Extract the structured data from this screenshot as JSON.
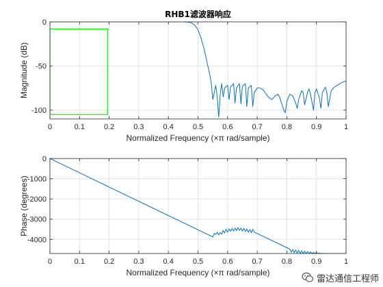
{
  "chart_data": [
    {
      "type": "line",
      "title": "RHB1滤波器响应",
      "xlabel": "Normalized Frequency  (×π rad/sample)",
      "ylabel": "Magnitude (dB)",
      "xlim": [
        0,
        1
      ],
      "ylim": [
        -110,
        0
      ],
      "xticks": [
        0,
        0.1,
        0.2,
        0.3,
        0.4,
        0.5,
        0.6,
        0.7,
        0.8,
        0.9,
        1
      ],
      "xtick_labels": [
        "0",
        "0.1",
        "0.2",
        "0.3",
        "0.4",
        "0.5",
        "0.6",
        "0.7",
        "0.8",
        "0.9",
        "1"
      ],
      "yticks": [
        0,
        -50,
        -100
      ],
      "ytick_labels": [
        "0",
        "-50",
        "-100"
      ],
      "grid": true,
      "series": [
        {
          "color": "#0072bd",
          "x": [
            0,
            0.45,
            0.47,
            0.48,
            0.49,
            0.5,
            0.51,
            0.52,
            0.53,
            0.54,
            0.545,
            0.55,
            0.555,
            0.56,
            0.565,
            0.57,
            0.575,
            0.58,
            0.585,
            0.59,
            0.6,
            0.605,
            0.61,
            0.62,
            0.625,
            0.63,
            0.64,
            0.645,
            0.65,
            0.66,
            0.665,
            0.67,
            0.68,
            0.685,
            0.69,
            0.7,
            0.71,
            0.72,
            0.73,
            0.74,
            0.75,
            0.76,
            0.77,
            0.775,
            0.78,
            0.79,
            0.795,
            0.8,
            0.81,
            0.82,
            0.83,
            0.835,
            0.84,
            0.85,
            0.855,
            0.86,
            0.87,
            0.875,
            0.88,
            0.89,
            0.895,
            0.9,
            0.91,
            0.915,
            0.92,
            0.93,
            0.935,
            0.94,
            0.95,
            0.96,
            0.97,
            0.98,
            0.99,
            1.0
          ],
          "y": [
            0,
            0,
            -0.3,
            -1.5,
            -4,
            -9,
            -18,
            -30,
            -45,
            -60,
            -70,
            -88,
            -80,
            -72,
            -85,
            -108,
            -82,
            -70,
            -85,
            -75,
            -72,
            -88,
            -74,
            -70,
            -92,
            -75,
            -70,
            -93,
            -73,
            -70,
            -96,
            -75,
            -72,
            -96,
            -80,
            -75,
            -75,
            -77,
            -82,
            -86,
            -88,
            -84,
            -82,
            -85,
            -90,
            -100,
            -103,
            -90,
            -82,
            -84,
            -92,
            -98,
            -88,
            -78,
            -80,
            -94,
            -80,
            -76,
            -82,
            -100,
            -80,
            -76,
            -86,
            -98,
            -80,
            -74,
            -80,
            -96,
            -78,
            -74,
            -72,
            -70,
            -68,
            -67
          ]
        }
      ],
      "shapes": [
        {
          "type": "rect",
          "color": "#00ff00",
          "x": [
            0,
            0.195
          ],
          "y": [
            -105,
            -8
          ]
        }
      ]
    },
    {
      "type": "line",
      "xlabel": "Normalized Frequency  (×π rad/sample)",
      "ylabel": "Phase (degrees)",
      "xlim": [
        0,
        1
      ],
      "ylim": [
        -4700,
        0
      ],
      "xticks": [
        0,
        0.1,
        0.2,
        0.3,
        0.4,
        0.5,
        0.6,
        0.7,
        0.8,
        0.9,
        1
      ],
      "xtick_labels": [
        "0",
        "0.1",
        "0.2",
        "0.3",
        "0.4",
        "0.5",
        "0.6",
        "0.7",
        "0.8",
        "0.9",
        "1"
      ],
      "yticks": [
        0,
        -1000,
        -2000,
        -3000,
        -4000
      ],
      "ytick_labels": [
        "0",
        "-1000",
        "-2000",
        "-3000",
        "-4000"
      ],
      "grid": true,
      "series": [
        {
          "color": "#0072bd",
          "x": [
            0,
            0.55,
            0.555,
            0.56,
            0.565,
            0.57,
            0.575,
            0.58,
            0.585,
            0.59,
            0.595,
            0.6,
            0.605,
            0.61,
            0.615,
            0.62,
            0.625,
            0.63,
            0.635,
            0.64,
            0.645,
            0.65,
            0.655,
            0.66,
            0.665,
            0.67,
            0.675,
            0.68,
            0.685,
            0.69,
            0.81,
            0.815,
            0.82,
            0.825,
            0.83,
            0.835,
            0.84,
            0.845,
            0.85,
            0.855,
            0.86,
            0.865,
            0.87,
            0.875,
            0.88,
            0.885,
            0.89,
            0.895,
            0.9,
            0.905,
            0.91,
            0.915,
            0.92,
            0.925,
            0.93,
            0.935,
            0.94,
            0.945,
            0.95,
            0.955,
            0.96,
            0.965,
            0.97,
            0.975,
            0.98,
            0.985,
            0.99,
            0.995,
            1.0
          ],
          "y": [
            0,
            -3880,
            -3700,
            -3760,
            -3640,
            -3780,
            -3660,
            -3740,
            -3560,
            -3680,
            -3500,
            -3640,
            -3480,
            -3600,
            -3460,
            -3590,
            -3440,
            -3570,
            -3420,
            -3560,
            -3440,
            -3590,
            -3460,
            -3620,
            -3480,
            -3650,
            -3510,
            -3670,
            -3500,
            -3640,
            -4480,
            -4640,
            -4500,
            -4660,
            -4520,
            -4680,
            -4540,
            -4700,
            -4560,
            -4700,
            -4580,
            -4700,
            -4600,
            -4700,
            -4620,
            -4700,
            -4640,
            -4700,
            -4660,
            -4700,
            -4680,
            -4700,
            -4690,
            -4700,
            -4700,
            -4700,
            -4700,
            -4700,
            -4700,
            -4700,
            -4700,
            -4700,
            -4700,
            -4700,
            -4700,
            -4700,
            -4700,
            -4700,
            -4700
          ]
        }
      ]
    }
  ],
  "watermark": {
    "icon": "wechat-icon",
    "text": "雷达通信工程师"
  }
}
